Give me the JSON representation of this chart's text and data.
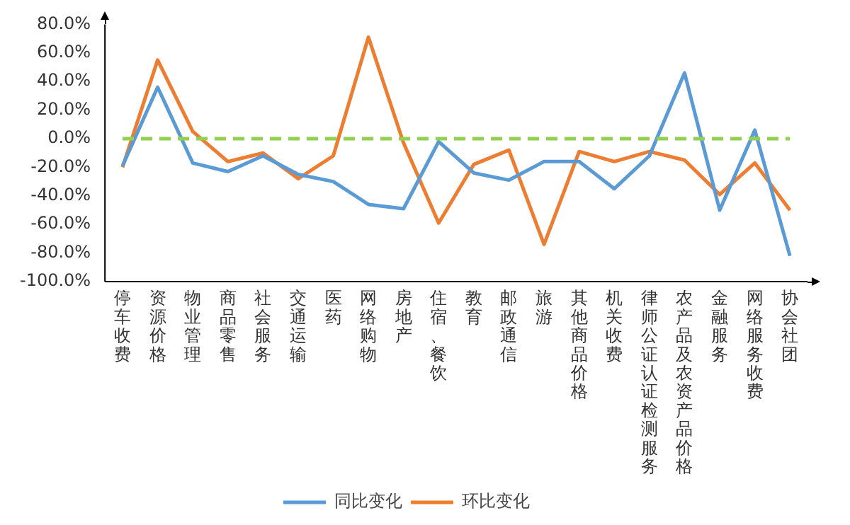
{
  "chart_data": {
    "type": "line",
    "categories": [
      "停车收费",
      "资源价格",
      "物业管理",
      "商品零售",
      "社会服务",
      "交通运输",
      "医药",
      "网络购物",
      "房地产",
      "住宿、餐饮",
      "教育",
      "邮政通信",
      "旅游",
      "其他商品价格",
      "机关收费",
      "律师公证认证检测服务",
      "农产品及农资产品价格",
      "金融服务",
      "网络服务收费",
      "协会社团"
    ],
    "series": [
      {
        "name": "同比变化",
        "color": "#5b9bd5",
        "values": [
          -19,
          36,
          -17,
          -23,
          -12,
          -25,
          -30,
          -46,
          -49,
          -2,
          -24,
          -29,
          -16,
          -16,
          -35,
          -12,
          46,
          -50,
          6,
          -82
        ]
      },
      {
        "name": "环比变化",
        "color": "#ed7d31",
        "values": [
          -20,
          55,
          5,
          -16,
          -10,
          -28,
          -12,
          71,
          -3,
          -59,
          -18,
          -8,
          -74,
          -9,
          -16,
          -9,
          -15,
          -39,
          -17,
          -50
        ]
      }
    ],
    "ylim": [
      -100,
      80
    ],
    "yticks": [
      {
        "value": -100,
        "label": "-100.0%"
      },
      {
        "value": -80,
        "label": "-80.0%"
      },
      {
        "value": -60,
        "label": "-60.0%"
      },
      {
        "value": -40,
        "label": "-40.0%"
      },
      {
        "value": -20,
        "label": "-20.0%"
      },
      {
        "value": 0,
        "label": "0.0%"
      },
      {
        "value": 20,
        "label": "20.0%"
      },
      {
        "value": 40,
        "label": "40.0%"
      },
      {
        "value": 60,
        "label": "60.0%"
      },
      {
        "value": 80,
        "label": "80.0%"
      }
    ],
    "ref_lines": [
      {
        "axis": "y",
        "value": 0,
        "color": "#92d050",
        "line_style": "dashed"
      }
    ],
    "grid": false,
    "legend": "bottom",
    "marker": "none",
    "line_style": "solid"
  }
}
